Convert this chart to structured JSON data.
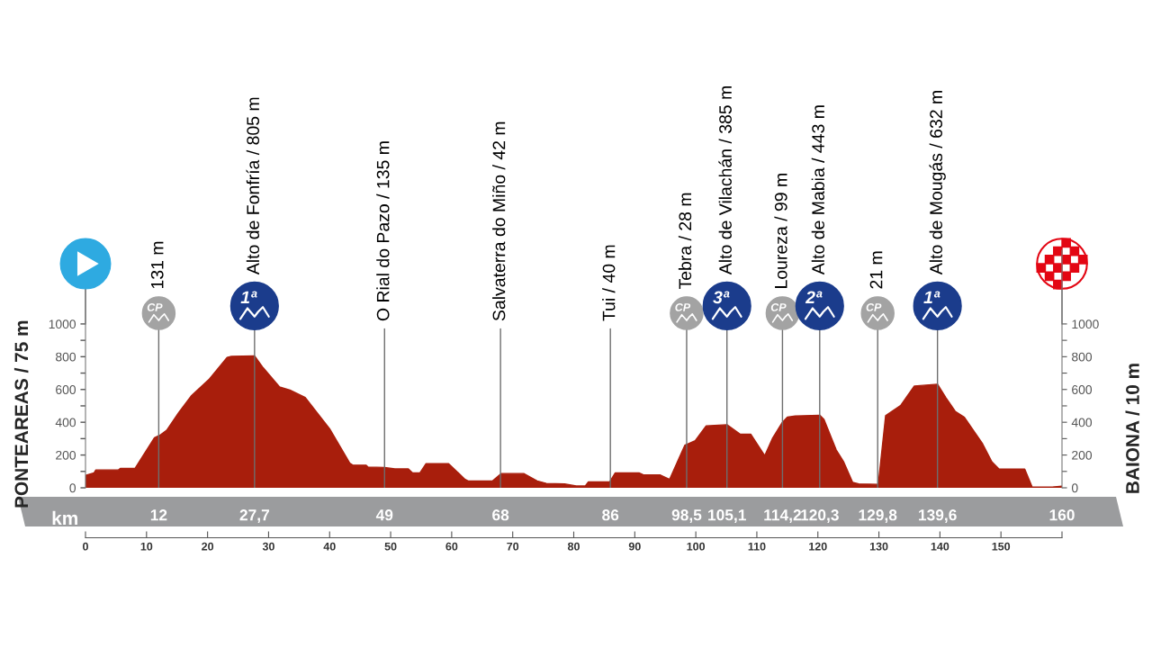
{
  "chart_data": {
    "type": "area",
    "x": [
      0,
      1.4,
      1.7,
      5.4,
      5.7,
      8.1,
      11.3,
      12.3,
      13.3,
      15.3,
      17.3,
      20.2,
      23.2,
      23.9,
      27.7,
      29.1,
      31.8,
      33.5,
      36,
      40,
      43.3,
      43.8,
      46,
      46.3,
      49,
      50.7,
      52.9,
      53.6,
      54.8,
      55.8,
      59.5,
      62.2,
      62.7,
      66.7,
      68.1,
      71.8,
      74,
      75.5,
      78.5,
      80.4,
      81.9,
      82.4,
      85.9,
      86.8,
      90.7,
      91.5,
      94.2,
      95.7,
      98.2,
      99.9,
      101.7,
      105.1,
      107.3,
      109,
      111.3,
      112.6,
      114.1,
      115,
      116.3,
      120.3,
      121,
      123,
      124.2,
      125.7,
      126.7,
      129.9,
      131.1,
      133.6,
      135.8,
      139.6,
      141,
      142.5,
      144,
      147,
      148.5,
      149.7,
      153.9,
      155.1,
      158.4,
      160
    ],
    "series": [
      {
        "color": "#a81e0c",
        "values": [
          75,
          91,
          109,
          109,
          118,
          118,
          305,
          324,
          351,
          460,
          560,
          660,
          796,
          802,
          805,
          733,
          615,
          596,
          551,
          360,
          151,
          138,
          138,
          127,
          124,
          115,
          115,
          91,
          91,
          147,
          147,
          51,
          42,
          42,
          87,
          87,
          42,
          27,
          24,
          11,
          11,
          36,
          36,
          91,
          91,
          78,
          78,
          51,
          260,
          287,
          378,
          385,
          327,
          327,
          196,
          304,
          395,
          431,
          438,
          443,
          417,
          232,
          160,
          33,
          24,
          21,
          440,
          504,
          621,
          632,
          549,
          467,
          431,
          268,
          159,
          114,
          114,
          5,
          5,
          10
        ]
      }
    ],
    "xlim": [
      0,
      160
    ],
    "xticks": [
      0,
      10,
      20,
      30,
      40,
      50,
      60,
      70,
      80,
      90,
      100,
      110,
      120,
      130,
      140,
      150,
      {
        "value": 160,
        "label": null
      }
    ],
    "x2lim": [
      0,
      160
    ],
    "x2label": "km",
    "x2ticks": [
      12,
      {
        "value": 27.7,
        "label": "27,7"
      },
      49,
      68,
      86,
      {
        "value": 98.5,
        "label": "98,5"
      },
      {
        "value": 105.1,
        "label": "105,1"
      },
      {
        "value": 114.2,
        "label": "114,2"
      },
      {
        "value": 120.3,
        "label": "120,3"
      },
      {
        "value": 129.8,
        "label": "129,8"
      },
      {
        "value": 139.6,
        "label": "139,6"
      },
      160
    ],
    "ylim": [
      0,
      1450
    ],
    "yticks": [
      0,
      {
        "value": 100,
        "label": null
      },
      200,
      {
        "value": 300,
        "label": null
      },
      400,
      {
        "value": 500,
        "label": null
      },
      600,
      {
        "value": 700,
        "label": null
      },
      800,
      {
        "value": 900,
        "label": null
      },
      1000
    ],
    "y2lim": [
      0,
      1450
    ],
    "y2ticks": [
      0,
      {
        "value": 100,
        "label": null
      },
      200,
      {
        "value": 300,
        "label": null
      },
      400,
      {
        "value": 500,
        "label": null
      },
      600,
      {
        "value": 700,
        "label": null
      },
      800,
      {
        "value": 900,
        "label": null
      },
      1000
    ],
    "ylabel": "PONTEAREAS / 75 m",
    "y2label": "BAIONA / 10 m",
    "ref_lines": [
      {
        "axis": "x",
        "value": 12,
        "label": "131 m"
      },
      {
        "axis": "x",
        "value": 27.7,
        "label": "Alto de Fonfría / 805 m"
      },
      {
        "axis": "x",
        "value": 49,
        "label": "O Rial do Pazo / 135 m"
      },
      {
        "axis": "x",
        "value": 68,
        "label": "Salvaterra do Miño / 42 m"
      },
      {
        "axis": "x",
        "value": 86,
        "label": "Tui / 40 m"
      },
      {
        "axis": "x",
        "value": 98.5,
        "label": "Tebra / 28 m"
      },
      {
        "axis": "x",
        "value": 105.1,
        "label": "Alto de Vilachán / 385 m"
      },
      {
        "axis": "x",
        "value": 114.2,
        "label": "Loureza / 99 m"
      },
      {
        "axis": "x",
        "value": 120.3,
        "label": "Alto de Mabia / 443 m"
      },
      {
        "axis": "x",
        "value": 129.8,
        "label": "21 m"
      },
      {
        "axis": "x",
        "value": 139.6,
        "label": "Alto de Mougás / 632 m"
      }
    ],
    "annotations": [
      {
        "text": "CP",
        "x": 12,
        "y": 1066
      },
      {
        "text": "1ª",
        "x": 27.7,
        "y": 1110
      },
      {
        "text": "CP",
        "x": 98.5,
        "y": 1066
      },
      {
        "text": "3ª",
        "x": 105.1,
        "y": 1110
      },
      {
        "text": "CP",
        "x": 114.2,
        "y": 1066
      },
      {
        "text": "2ª",
        "x": 120.3,
        "y": 1110
      },
      {
        "text": "CP",
        "x": 129.8,
        "y": 1066
      },
      {
        "text": "1ª",
        "x": 139.6,
        "y": 1110
      }
    ],
    "grid": false
  }
}
